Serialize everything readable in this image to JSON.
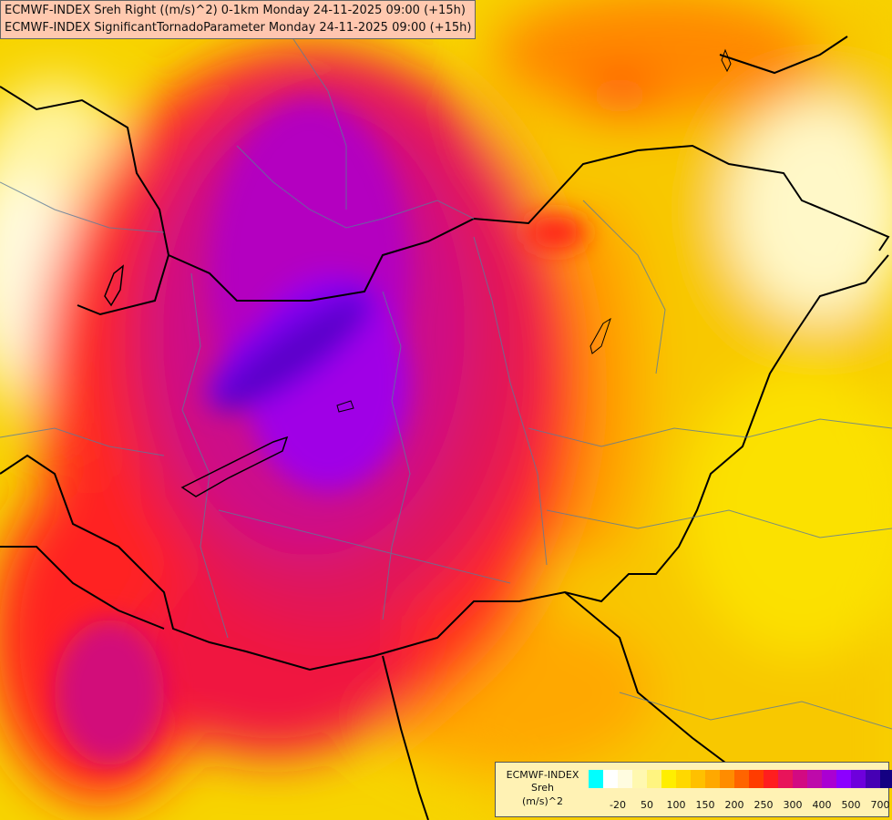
{
  "titles": {
    "line1": "ECMWF-INDEX Sreh Right ((m/s)^2) 0-1km Monday 24-11-2025 09:00 (+15h)",
    "line2": "ECMWF-INDEX SignificantTornadoParameter Monday 24-11-2025 09:00 (+15h)"
  },
  "legend": {
    "model": "ECMWF-INDEX",
    "variable": "Sreh",
    "unit": "(m/s)^2",
    "colors": [
      "#00ffff",
      "#ffffff",
      "#fffce0",
      "#fff8b0",
      "#fff480",
      "#ffee00",
      "#ffd800",
      "#ffc000",
      "#ffa800",
      "#ff8c00",
      "#ff6400",
      "#ff3c00",
      "#ff1e1e",
      "#e8145a",
      "#d20a82",
      "#be0aaa",
      "#aa00d2",
      "#8c00ff",
      "#6e00dc",
      "#4600b4",
      "#140082"
    ],
    "ticks": [
      {
        "label": "-20",
        "index": 1
      },
      {
        "label": "50",
        "index": 3
      },
      {
        "label": "100",
        "index": 5
      },
      {
        "label": "150",
        "index": 7
      },
      {
        "label": "200",
        "index": 9
      },
      {
        "label": "250",
        "index": 11
      },
      {
        "label": "300",
        "index": 13
      },
      {
        "label": "400",
        "index": 15
      },
      {
        "label": "500",
        "index": 17
      },
      {
        "label": "700",
        "index": 19
      }
    ]
  }
}
